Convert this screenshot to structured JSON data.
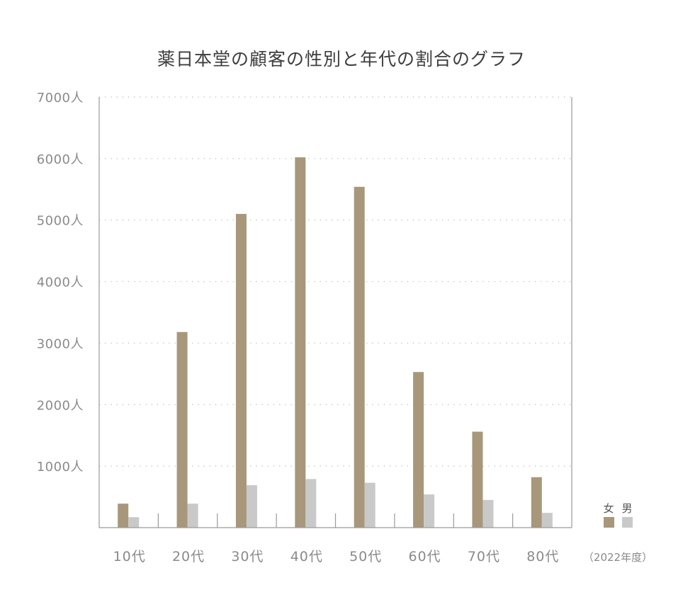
{
  "chart_data": {
    "type": "bar",
    "title": "薬日本堂の顧客の性別と年代の割合のグラフ",
    "categories": [
      "10代",
      "20代",
      "30代",
      "40代",
      "50代",
      "60代",
      "70代",
      "80代"
    ],
    "series": [
      {
        "name": "女",
        "color": "#a8977b",
        "values": [
          390,
          3180,
          5100,
          6020,
          5540,
          2530,
          1560,
          820
        ]
      },
      {
        "name": "男",
        "color": "#c9c9c9",
        "values": [
          170,
          390,
          690,
          790,
          730,
          540,
          450,
          240
        ]
      }
    ],
    "y_ticks": [
      "1000人",
      "2000人",
      "3000人",
      "4000人",
      "5000人",
      "6000人",
      "7000人"
    ],
    "ylim": [
      0,
      7000
    ],
    "grid": true,
    "legend_position": "bottom-right",
    "note": "（2022年度）"
  }
}
